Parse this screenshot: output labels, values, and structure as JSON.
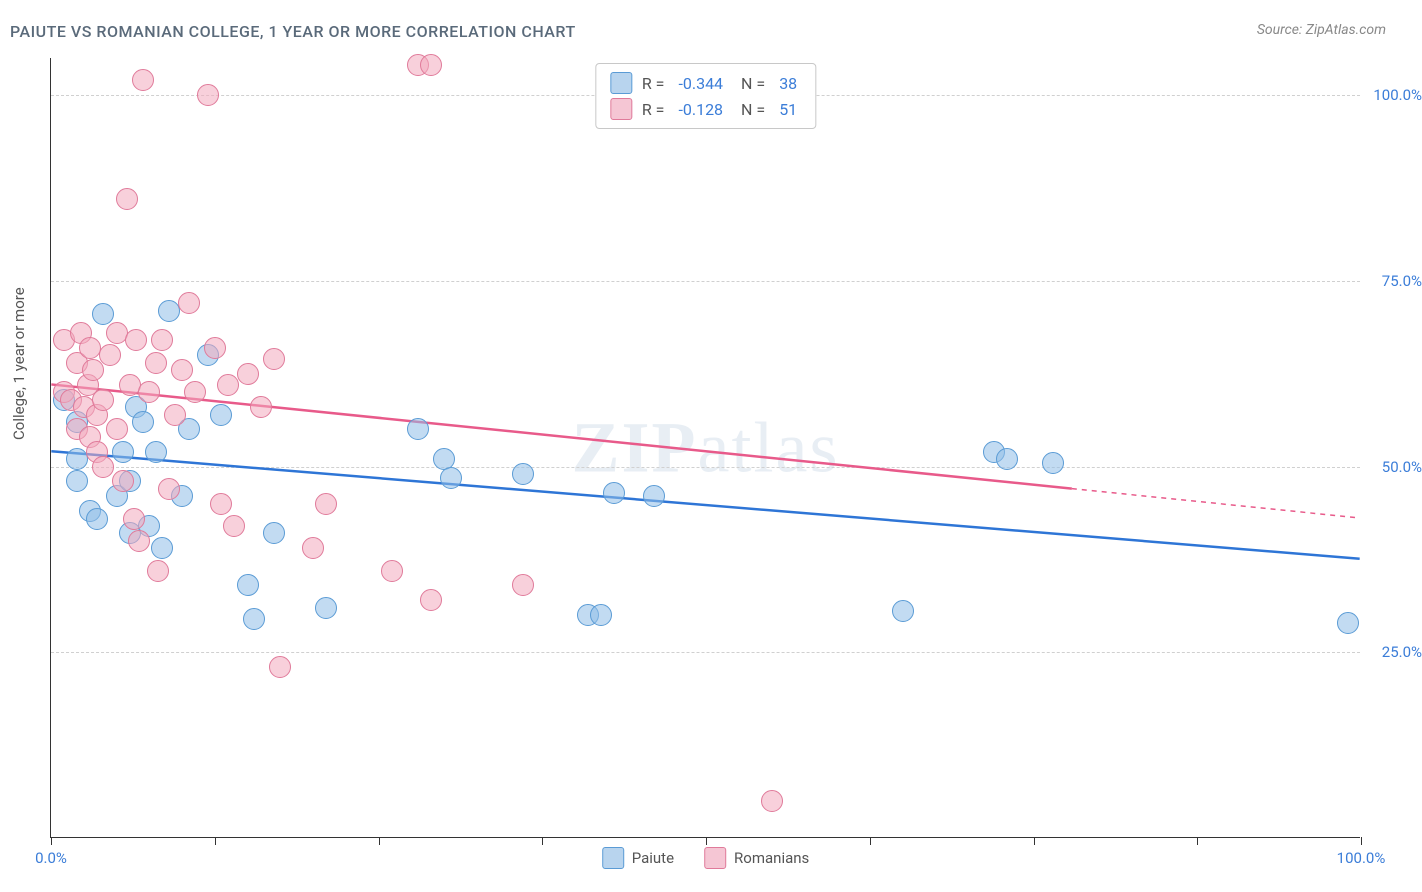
{
  "title": "PAIUTE VS ROMANIAN COLLEGE, 1 YEAR OR MORE CORRELATION CHART",
  "source": "Source: ZipAtlas.com",
  "ylabel": "College, 1 year or more",
  "watermark": "ZIPatlas",
  "chart": {
    "type": "scatter",
    "xlim": [
      0,
      100
    ],
    "ylim": [
      0,
      105
    ],
    "yticks": [
      25,
      50,
      75,
      100
    ],
    "ytick_labels": [
      "25.0%",
      "50.0%",
      "75.0%",
      "100.0%"
    ],
    "xticks": [
      0,
      12.5,
      25,
      37.5,
      50,
      62.5,
      75,
      87.5,
      100
    ],
    "xtick_labels_shown": {
      "0": "0.0%",
      "100": "100.0%"
    },
    "grid_color": "#d0d0d0",
    "background_color": "#ffffff",
    "axis_color": "#333333",
    "label_color_blue": "#3b7dd8"
  },
  "series": [
    {
      "name": "Paiute",
      "color_fill": "rgba(144, 190, 232, 0.55)",
      "color_stroke": "#5a9bd5",
      "swatch_fill": "#b8d4ee",
      "swatch_stroke": "#5a9bd5",
      "marker_radius": 11,
      "R": "-0.344",
      "N": "38",
      "trend": {
        "color": "#2e75d6",
        "width": 2.5,
        "x1": 0,
        "y1": 52,
        "x2": 100,
        "y2": 37.5,
        "solid_to_x": 100
      },
      "points": [
        [
          1,
          59
        ],
        [
          2,
          48
        ],
        [
          2,
          51
        ],
        [
          2,
          56
        ],
        [
          3,
          44
        ],
        [
          3.5,
          43
        ],
        [
          4,
          70.5
        ],
        [
          5,
          46
        ],
        [
          5.5,
          52
        ],
        [
          6,
          41
        ],
        [
          6,
          48
        ],
        [
          6.5,
          58
        ],
        [
          7,
          56
        ],
        [
          7.5,
          42
        ],
        [
          8,
          52
        ],
        [
          8.5,
          39
        ],
        [
          9,
          71
        ],
        [
          10,
          46
        ],
        [
          10.5,
          55
        ],
        [
          12,
          65
        ],
        [
          13,
          57
        ],
        [
          15,
          34
        ],
        [
          15.5,
          29.5
        ],
        [
          17,
          41
        ],
        [
          21,
          31
        ],
        [
          28,
          55
        ],
        [
          30,
          51
        ],
        [
          30.5,
          48.5
        ],
        [
          36,
          49
        ],
        [
          41,
          30
        ],
        [
          42,
          30
        ],
        [
          43,
          46.5
        ],
        [
          46,
          46
        ],
        [
          65,
          30.5
        ],
        [
          72,
          52
        ],
        [
          73,
          51
        ],
        [
          76.5,
          50.5
        ],
        [
          99,
          29
        ]
      ]
    },
    {
      "name": "Romanians",
      "color_fill": "rgba(242, 170, 190, 0.55)",
      "color_stroke": "#e07a9a",
      "swatch_fill": "#f5c6d4",
      "swatch_stroke": "#e07a9a",
      "marker_radius": 11,
      "R": "-0.128",
      "N": "51",
      "trend": {
        "color": "#e85a8a",
        "width": 2.5,
        "x1": 0,
        "y1": 61,
        "x2": 100,
        "y2": 43,
        "solid_to_x": 78
      },
      "points": [
        [
          1,
          60
        ],
        [
          1,
          67
        ],
        [
          1.5,
          59
        ],
        [
          2,
          64
        ],
        [
          2,
          55
        ],
        [
          2.3,
          68
        ],
        [
          2.5,
          58
        ],
        [
          2.8,
          61
        ],
        [
          3,
          66
        ],
        [
          3,
          54
        ],
        [
          3.2,
          63
        ],
        [
          3.5,
          57
        ],
        [
          3.5,
          52
        ],
        [
          4,
          50
        ],
        [
          4,
          59
        ],
        [
          4.5,
          65
        ],
        [
          5,
          68
        ],
        [
          5,
          55
        ],
        [
          5.5,
          48
        ],
        [
          5.8,
          86
        ],
        [
          6,
          61
        ],
        [
          6.3,
          43
        ],
        [
          6.5,
          67
        ],
        [
          6.7,
          40
        ],
        [
          7,
          102
        ],
        [
          7.5,
          60
        ],
        [
          8,
          64
        ],
        [
          8.2,
          36
        ],
        [
          8.5,
          67
        ],
        [
          9,
          47
        ],
        [
          9.5,
          57
        ],
        [
          10,
          63
        ],
        [
          10.5,
          72
        ],
        [
          11,
          60
        ],
        [
          12,
          100
        ],
        [
          12.5,
          66
        ],
        [
          13,
          45
        ],
        [
          13.5,
          61
        ],
        [
          14,
          42
        ],
        [
          15,
          62.5
        ],
        [
          16,
          58
        ],
        [
          17,
          64.5
        ],
        [
          17.5,
          23
        ],
        [
          20,
          39
        ],
        [
          21,
          45
        ],
        [
          26,
          36
        ],
        [
          28,
          104
        ],
        [
          29,
          104
        ],
        [
          29,
          32
        ],
        [
          36,
          34
        ],
        [
          55,
          5
        ]
      ]
    }
  ],
  "legend_bottom": [
    {
      "label": "Paiute",
      "series_idx": 0
    },
    {
      "label": "Romanians",
      "series_idx": 1
    }
  ]
}
